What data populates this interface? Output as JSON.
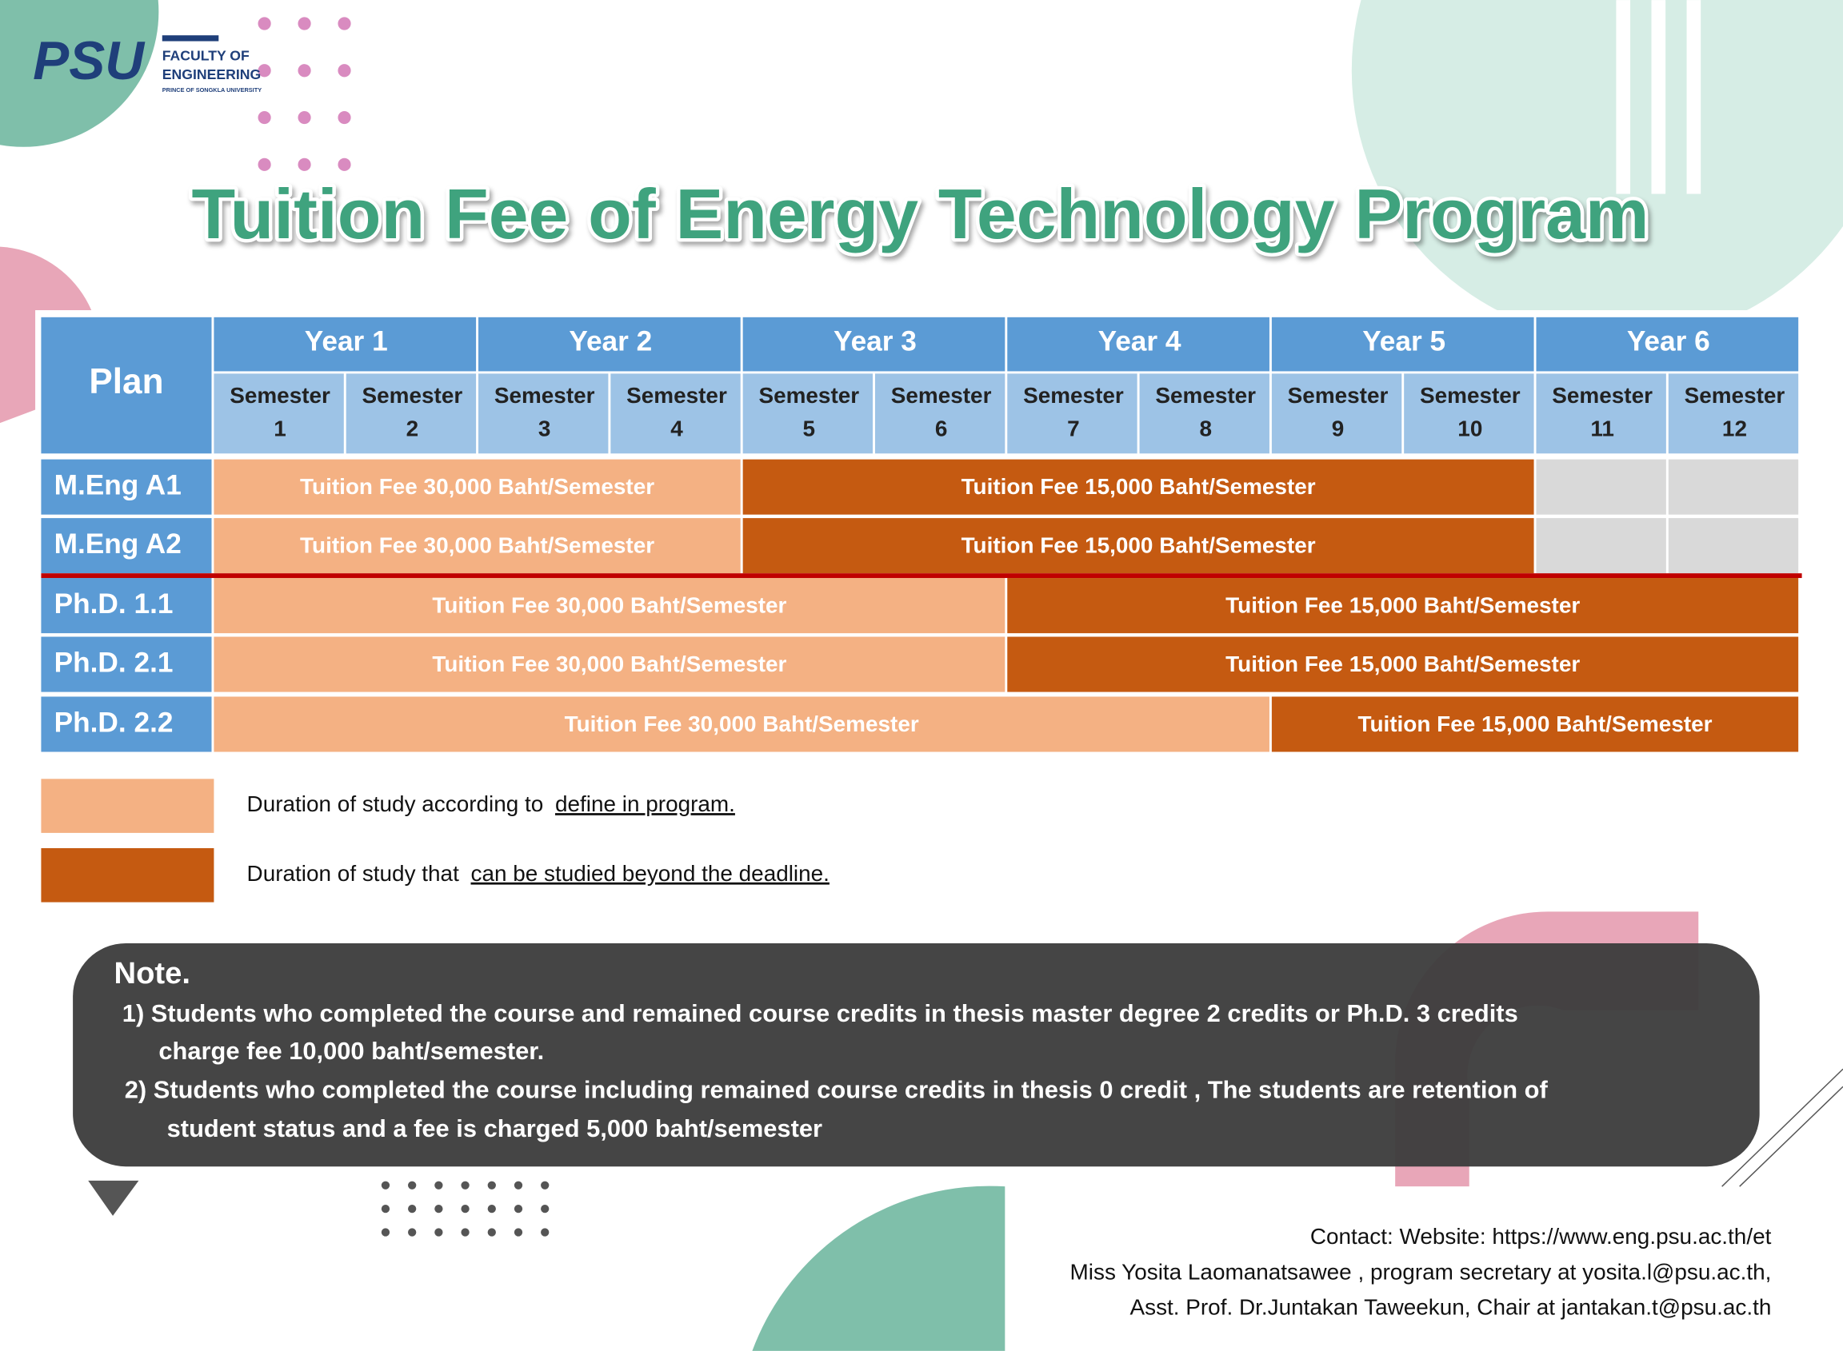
{
  "header": {
    "logo": "PSU",
    "faculty": [
      "FACULTY OF",
      "ENGINEERING",
      "PRINCE OF SONGKLA UNIVERSITY"
    ]
  },
  "title": "Tuition Fee of Energy Technology Program",
  "table": {
    "plan_header": "Plan",
    "years": [
      "Year 1",
      "Year 2",
      "Year 3",
      "Year 4",
      "Year 5",
      "Year 6"
    ],
    "semesters": [
      {
        "label": "Semester",
        "number": 1
      },
      {
        "label": "Semester",
        "number": 2
      },
      {
        "label": "Semester",
        "number": 3
      },
      {
        "label": "Semester",
        "number": 4
      },
      {
        "label": "Semester",
        "number": 5
      },
      {
        "label": "Semester",
        "number": 6
      },
      {
        "label": "Semester",
        "number": 7
      },
      {
        "label": "Semester",
        "number": 8
      },
      {
        "label": "Semester",
        "number": 9
      },
      {
        "label": "Semester",
        "number": 10
      },
      {
        "label": "Semester",
        "number": 11
      },
      {
        "label": "Semester",
        "number": 12
      }
    ],
    "rows": [
      {
        "plan": "M.Eng A1",
        "fees": [
          "Tuition Fee 30,000 Baht/Semester",
          "Tuition Fee 15,000 Baht/Semester"
        ]
      },
      {
        "plan": "M.Eng A2",
        "fees": [
          "Tuition Fee 30,000 Baht/Semester",
          "Tuition Fee 15,000 Baht/Semester"
        ]
      },
      {
        "plan": "Ph.D. 1.1",
        "fees": [
          "Tuition Fee 30,000 Baht/Semester",
          "Tuition Fee 15,000 Baht/Semester"
        ]
      },
      {
        "plan": "Ph.D. 2.1",
        "fees": [
          "Tuition Fee 30,000 Baht/Semester",
          "Tuition Fee 15,000 Baht/Semester"
        ]
      },
      {
        "plan": "Ph.D. 2.2",
        "fees": [
          "Tuition Fee 30,000 Baht/Semester",
          "Tuition Fee 15,000 Baht/Semester"
        ]
      }
    ]
  },
  "legend": [
    {
      "text": "Duration of study  according to",
      "underlined": "define in program."
    },
    {
      "text": "Duration of study that",
      "underlined": "can be studied beyond the deadline."
    }
  ],
  "note": {
    "title": "Note.",
    "items": [
      [
        "1) Students who completed the course and  remained course credits in thesis master degree 2 credits or Ph.D. 3 credits",
        "charge fee 10,000 baht/semester."
      ],
      [
        "2) Students who completed the course including remained course credits in thesis 0 credit , The students are retention of",
        "student status and a fee is charged 5,000 baht/semester"
      ]
    ]
  },
  "contact": [
    "Contact: Website: https://www.eng.psu.ac.th/et",
    "Miss Yosita Laomanatsawee , program secretary at yosita.l@psu.ac.th,",
    "Asst. Prof. Dr.Juntakan Taweekun, Chair at jantakan.t@psu.ac.th"
  ]
}
